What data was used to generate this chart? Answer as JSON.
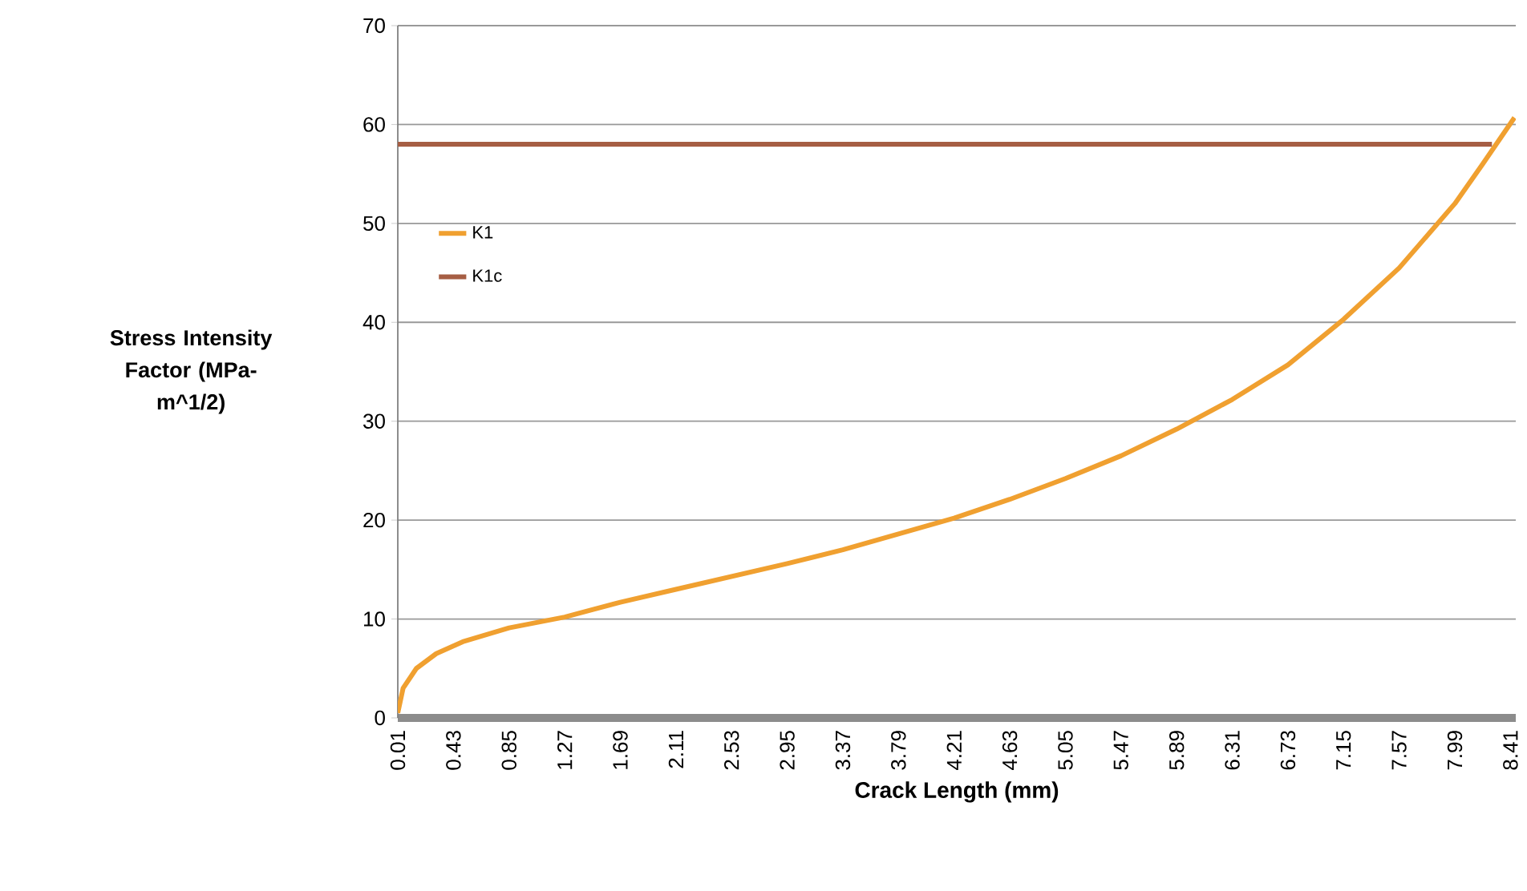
{
  "chart_data": {
    "type": "line",
    "xlabel": "Crack Length (mm)",
    "ylabel": "Stress Intensity Factor (MPa-m^1/2)",
    "xlim": [
      0.01,
      8.45
    ],
    "xticks": [
      0.01,
      0.43,
      0.85,
      1.27,
      1.69,
      2.11,
      2.53,
      2.95,
      3.37,
      3.79,
      4.21,
      4.63,
      5.05,
      5.47,
      5.89,
      6.31,
      6.73,
      7.15,
      7.57,
      7.99,
      8.41
    ],
    "ylim": [
      0,
      70
    ],
    "yticks": [
      0,
      10,
      20,
      30,
      40,
      50,
      60,
      70
    ],
    "grid": "y",
    "legend": "left",
    "series": [
      {
        "name": "K1",
        "color": "#f0a030",
        "x": [
          0.01,
          0.05,
          0.15,
          0.3,
          0.5,
          0.85,
          1.27,
          1.69,
          2.11,
          2.53,
          2.95,
          3.37,
          3.79,
          4.21,
          4.63,
          5.05,
          5.47,
          5.89,
          6.31,
          6.73,
          7.15,
          7.57,
          7.99,
          8.2,
          8.44
        ],
        "values": [
          0.5,
          3,
          5,
          6.5,
          7.7,
          9.1,
          10.2,
          11.7,
          13,
          14.3,
          15.6,
          17,
          18.6,
          20.2,
          22.1,
          24.2,
          26.5,
          29.2,
          32.2,
          35.7,
          40.3,
          45.5,
          52,
          56,
          60.7
        ]
      },
      {
        "name": "K1c",
        "color": "#a65e44",
        "x": [
          0.01,
          8.27
        ],
        "values": [
          58,
          58
        ]
      }
    ]
  }
}
